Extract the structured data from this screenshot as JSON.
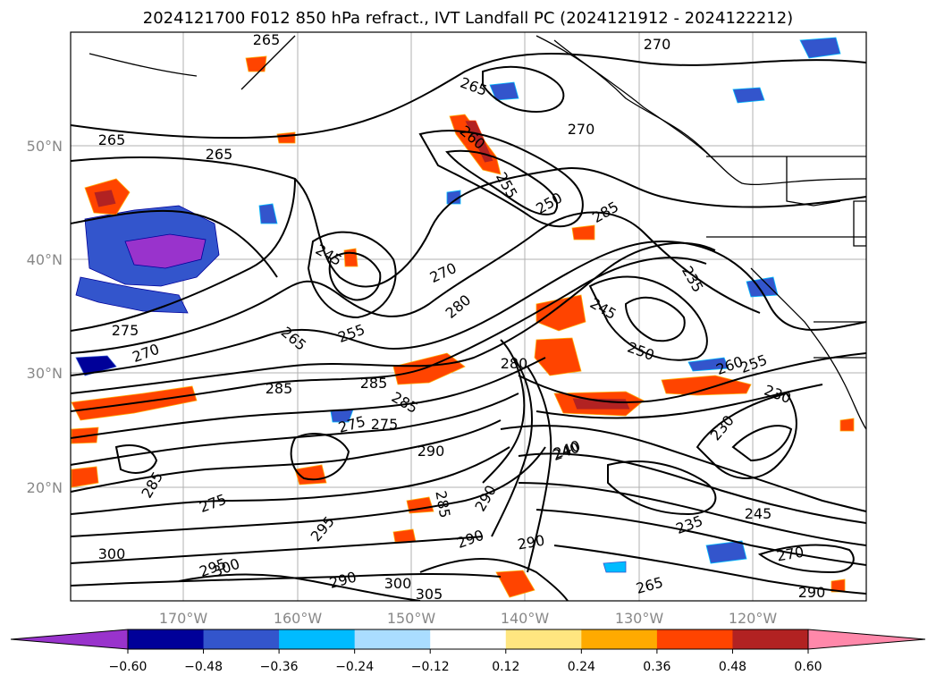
{
  "title": "2024121700 F012 850 hPa refract., IVT Landfall PC (2024121912 - 2024122212)",
  "map": {
    "lon_labels": [
      "170°W",
      "160°W",
      "150°W",
      "140°W",
      "130°W",
      "120°W"
    ],
    "lat_labels": [
      "50°N",
      "40°N",
      "30°N",
      "20°N"
    ],
    "contour_labels": [
      "265",
      "265",
      "265",
      "270",
      "265",
      "270",
      "260",
      "255",
      "250",
      "285",
      "245",
      "270",
      "275",
      "280",
      "245",
      "250",
      "265",
      "275",
      "270",
      "285",
      "255",
      "285",
      "280",
      "285",
      "260",
      "290",
      "240",
      "275",
      "235",
      "290",
      "285",
      "300",
      "290",
      "295",
      "290",
      "300",
      "295",
      "300",
      "305",
      "290",
      "285",
      "265",
      "270",
      "290",
      "275",
      "240",
      "235",
      "255",
      "245",
      "230",
      "230"
    ],
    "colors": {
      "contour": "#000000",
      "coast": "#000000",
      "grid": "#b0b0b0"
    }
  },
  "colorbar": {
    "ticks": [
      "−0.60",
      "−0.48",
      "−0.36",
      "−0.24",
      "−0.12",
      "0.12",
      "0.24",
      "0.36",
      "0.48",
      "0.60"
    ],
    "bins": [
      "#9933cc",
      "#000099",
      "#3355cc",
      "#00bbff",
      "#aaddff",
      "#ffffff",
      "#ffe680",
      "#ffaa00",
      "#ff4400",
      "#b22222",
      "#ff88aa"
    ]
  }
}
